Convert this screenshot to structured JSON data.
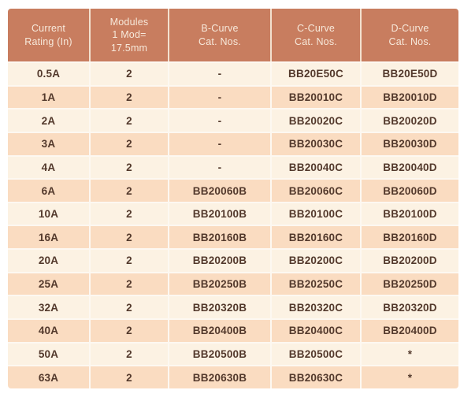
{
  "table": {
    "headers": [
      "Current\nRating (In)",
      "Modules\n1 Mod=\n17.5mm",
      "B-Curve\nCat. Nos.",
      "C-Curve\nCat. Nos.",
      "D-Curve\nCat. Nos."
    ],
    "rows": [
      [
        "0.5A",
        "2",
        "-",
        "BB20E50C",
        "BB20E50D"
      ],
      [
        "1A",
        "2",
        "-",
        "BB20010C",
        "BB20010D"
      ],
      [
        "2A",
        "2",
        "-",
        "BB20020C",
        "BB20020D"
      ],
      [
        "3A",
        "2",
        "-",
        "BB20030C",
        "BB20030D"
      ],
      [
        "4A",
        "2",
        "-",
        "BB20040C",
        "BB20040D"
      ],
      [
        "6A",
        "2",
        "BB20060B",
        "BB20060C",
        "BB20060D"
      ],
      [
        "10A",
        "2",
        "BB20100B",
        "BB20100C",
        "BB20100D"
      ],
      [
        "16A",
        "2",
        "BB20160B",
        "BB20160C",
        "BB20160D"
      ],
      [
        "20A",
        "2",
        "BB20200B",
        "BB20200C",
        "BB20200D"
      ],
      [
        "25A",
        "2",
        "BB20250B",
        "BB20250C",
        "BB20250D"
      ],
      [
        "32A",
        "2",
        "BB20320B",
        "BB20320C",
        "BB20320D"
      ],
      [
        "40A",
        "2",
        "BB20400B",
        "BB20400C",
        "BB20400D"
      ],
      [
        "50A",
        "2",
        "BB20500B",
        "BB20500C",
        "*"
      ],
      [
        "63A",
        "2",
        "BB20630B",
        "BB20630C",
        "*"
      ]
    ]
  },
  "colors": {
    "header_bg": "#C87D5F",
    "header_text": "#F7E9DB",
    "header_divider": "#F3E1CF",
    "row_light": "#FCF2E3",
    "row_peach": "#FADCC1",
    "cell_text": "#53392C",
    "grid_line": "#FDF8F1"
  }
}
